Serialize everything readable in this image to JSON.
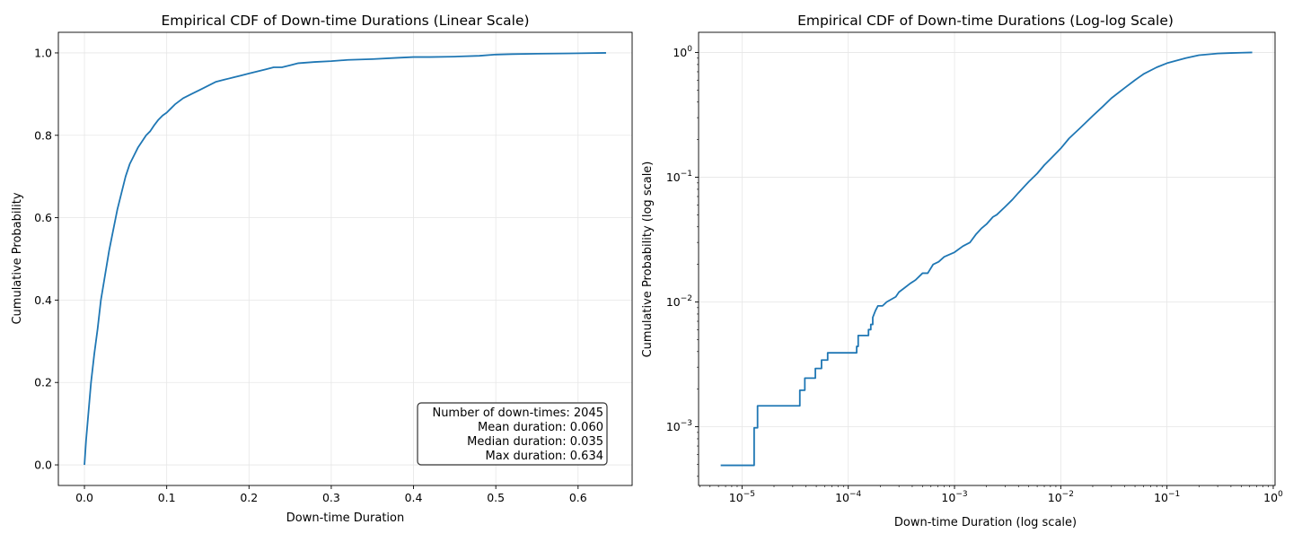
{
  "chart_data": [
    {
      "type": "line",
      "title": "Empirical CDF of Down-time Durations (Linear Scale)",
      "xlabel": "Down-time Duration",
      "ylabel": "Cumulative Probability",
      "xscale": "linear",
      "yscale": "linear",
      "xlim": [
        -0.0317,
        0.6657
      ],
      "ylim": [
        -0.05,
        1.05
      ],
      "xticks": [
        0.0,
        0.1,
        0.2,
        0.3,
        0.4,
        0.5,
        0.6
      ],
      "xtick_labels": [
        "0.0",
        "0.1",
        "0.2",
        "0.3",
        "0.4",
        "0.5",
        "0.6"
      ],
      "yticks": [
        0.0,
        0.2,
        0.4,
        0.6,
        0.8,
        1.0
      ],
      "ytick_labels": [
        "0.0",
        "0.2",
        "0.4",
        "0.6",
        "0.8",
        "1.0"
      ],
      "grid": true,
      "color": "#1f77b4",
      "series": [
        {
          "x": [
            0.0,
            0.002,
            0.005,
            0.008,
            0.012,
            0.016,
            0.02,
            0.025,
            0.03,
            0.035,
            0.04,
            0.045,
            0.05,
            0.055,
            0.06,
            0.065,
            0.07,
            0.075,
            0.08,
            0.085,
            0.09,
            0.095,
            0.1,
            0.105,
            0.11,
            0.12,
            0.13,
            0.14,
            0.15,
            0.16,
            0.17,
            0.18,
            0.19,
            0.2,
            0.21,
            0.22,
            0.23,
            0.24,
            0.25,
            0.26,
            0.28,
            0.3,
            0.32,
            0.35,
            0.38,
            0.4,
            0.42,
            0.45,
            0.48,
            0.5,
            0.52,
            0.55,
            0.6,
            0.634
          ],
          "y": [
            0.0,
            0.06,
            0.13,
            0.2,
            0.27,
            0.33,
            0.4,
            0.46,
            0.52,
            0.57,
            0.62,
            0.66,
            0.7,
            0.73,
            0.75,
            0.77,
            0.785,
            0.8,
            0.81,
            0.825,
            0.838,
            0.848,
            0.855,
            0.865,
            0.875,
            0.89,
            0.9,
            0.91,
            0.92,
            0.93,
            0.935,
            0.94,
            0.945,
            0.95,
            0.955,
            0.96,
            0.965,
            0.965,
            0.97,
            0.975,
            0.978,
            0.98,
            0.983,
            0.985,
            0.988,
            0.99,
            0.99,
            0.991,
            0.993,
            0.996,
            0.997,
            0.998,
            0.999,
            1.0
          ]
        }
      ],
      "annotation": [
        "Number of down-times: 2045",
        "Mean duration: 0.060",
        "Median duration: 0.035",
        "Max duration: 0.634"
      ]
    },
    {
      "type": "line",
      "title": "Empirical CDF of Down-time Durations (Log-log Scale)",
      "xlabel": "Down-time Duration (log scale)",
      "ylabel": "Cumulative Probability (log scale)",
      "xscale": "log",
      "yscale": "log",
      "xlim": [
        3.9e-06,
        1.04
      ],
      "ylim": [
        0.000338,
        1.45
      ],
      "xticks": [
        1e-05,
        0.0001,
        0.001,
        0.01,
        0.1,
        1
      ],
      "xtick_labels": [
        [
          "10",
          "−5"
        ],
        [
          "10",
          "−4"
        ],
        [
          "10",
          "−3"
        ],
        [
          "10",
          "−2"
        ],
        [
          "10",
          "−1"
        ],
        [
          "10",
          "0"
        ]
      ],
      "yticks": [
        0.001,
        0.01,
        0.1,
        1
      ],
      "ytick_labels": [
        [
          "10",
          "−3"
        ],
        [
          "10",
          "−2"
        ],
        [
          "10",
          "−1"
        ],
        [
          "10",
          "0"
        ]
      ],
      "grid": true,
      "color": "#1f77b4",
      "series": [
        {
          "x": [
            6.3e-06,
            1.3e-05,
            1.3e-05,
            1.4e-05,
            1.4e-05,
            3.5e-05,
            3.5e-05,
            3.9e-05,
            3.9e-05,
            4.9e-05,
            4.9e-05,
            5.6e-05,
            5.6e-05,
            6.4e-05,
            6.4e-05,
            0.00012,
            0.00012,
            0.000124,
            0.000124,
            0.000155,
            0.000155,
            0.000163,
            0.000163,
            0.00017,
            0.00017,
            0.00018,
            0.00019,
            0.00021,
            0.00023,
            0.00028,
            0.0003,
            0.00034,
            0.00038,
            0.00043,
            0.0005,
            0.00056,
            0.00063,
            0.00071,
            0.0008,
            0.001,
            0.0012,
            0.0014,
            0.0016,
            0.0018,
            0.002,
            0.0023,
            0.0025,
            0.003,
            0.0035,
            0.004,
            0.005,
            0.006,
            0.007,
            0.008,
            0.01,
            0.012,
            0.015,
            0.02,
            0.025,
            0.03,
            0.04,
            0.05,
            0.06,
            0.08,
            0.1,
            0.15,
            0.2,
            0.3,
            0.4,
            0.5,
            0.634
          ],
          "y": [
            0.00049,
            0.00049,
            0.00098,
            0.00098,
            0.00147,
            0.00147,
            0.00196,
            0.00196,
            0.00245,
            0.00245,
            0.00293,
            0.00293,
            0.00342,
            0.00342,
            0.00391,
            0.00391,
            0.0044,
            0.0044,
            0.00538,
            0.00538,
            0.006,
            0.006,
            0.0066,
            0.0066,
            0.0075,
            0.0085,
            0.0093,
            0.0093,
            0.01,
            0.011,
            0.012,
            0.013,
            0.014,
            0.015,
            0.017,
            0.017,
            0.02,
            0.021,
            0.023,
            0.025,
            0.028,
            0.03,
            0.035,
            0.039,
            0.042,
            0.048,
            0.05,
            0.058,
            0.066,
            0.075,
            0.092,
            0.107,
            0.125,
            0.14,
            0.17,
            0.205,
            0.245,
            0.31,
            0.37,
            0.43,
            0.52,
            0.6,
            0.67,
            0.76,
            0.82,
            0.9,
            0.95,
            0.98,
            0.99,
            0.995,
            1.0
          ]
        }
      ]
    }
  ]
}
